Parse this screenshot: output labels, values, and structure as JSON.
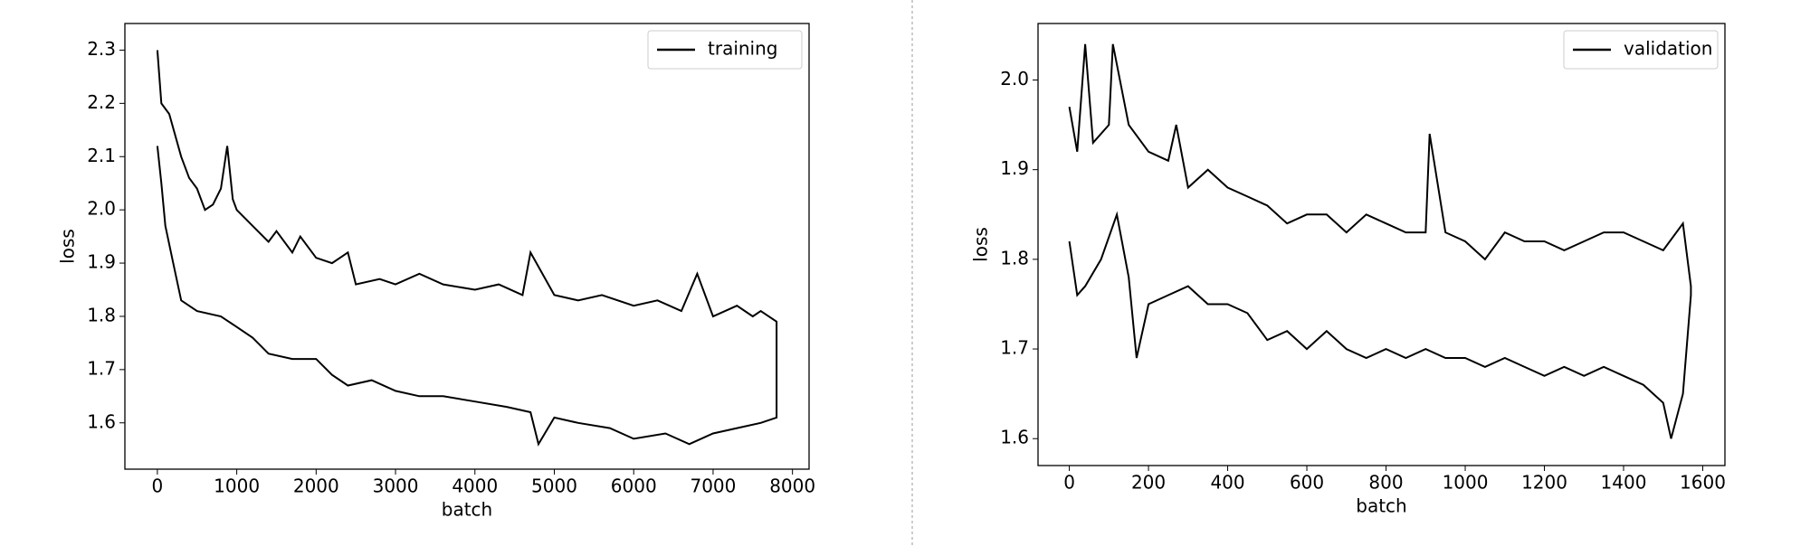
{
  "chart_data": [
    {
      "type": "line",
      "xlabel": "batch",
      "ylabel": "loss",
      "xlim": [
        -409,
        8209
      ],
      "ylim": [
        1.513,
        2.35
      ],
      "xticks": [
        0,
        1000,
        2000,
        3000,
        4000,
        5000,
        6000,
        7000,
        8000
      ],
      "yticks": [
        1.6,
        1.7,
        1.8,
        1.9,
        {
          "value": 2,
          "label": "2.0"
        },
        2.1,
        2.2,
        2.3
      ],
      "legend": "upper right",
      "series": [
        {
          "name": "training",
          "color": "#000000",
          "x": [
            0,
            50,
            150,
            300,
            400,
            500,
            600,
            700,
            800,
            880,
            950,
            1000,
            1200,
            1400,
            1500,
            1700,
            1800,
            2000,
            2200,
            2400,
            2500,
            2800,
            3000,
            3300,
            3600,
            4000,
            4300,
            4600,
            4700,
            5000,
            5300,
            5600,
            6000,
            6300,
            6600,
            6800,
            7000,
            7300,
            7500,
            7600,
            7800,
            7800,
            7600,
            7300,
            7000,
            6700,
            6400,
            6000,
            5700,
            5300,
            5000,
            4800,
            4700,
            4400,
            4000,
            3600,
            3300,
            3000,
            2700,
            2400,
            2200,
            2000,
            1700,
            1400,
            1200,
            1000,
            800,
            500,
            300,
            200,
            100,
            50,
            0
          ],
          "values": [
            2.3,
            2.2,
            2.18,
            2.1,
            2.06,
            2.04,
            2.0,
            2.01,
            2.04,
            2.12,
            2.02,
            2.0,
            1.97,
            1.94,
            1.96,
            1.92,
            1.95,
            1.91,
            1.9,
            1.92,
            1.86,
            1.87,
            1.86,
            1.88,
            1.86,
            1.85,
            1.86,
            1.84,
            1.92,
            1.84,
            1.83,
            1.84,
            1.82,
            1.83,
            1.81,
            1.88,
            1.8,
            1.82,
            1.8,
            1.81,
            1.79,
            1.61,
            1.6,
            1.59,
            1.58,
            1.56,
            1.58,
            1.57,
            1.59,
            1.6,
            1.61,
            1.56,
            1.62,
            1.63,
            1.64,
            1.65,
            1.65,
            1.66,
            1.68,
            1.67,
            1.69,
            1.72,
            1.72,
            1.73,
            1.76,
            1.78,
            1.8,
            1.81,
            1.83,
            1.9,
            1.97,
            2.05,
            2.12
          ]
        }
      ]
    },
    {
      "type": "line",
      "xlabel": "batch",
      "ylabel": "loss",
      "xlim": [
        -79,
        1656
      ],
      "ylim": [
        1.57,
        2.063
      ],
      "xticks": [
        0,
        200,
        400,
        600,
        800,
        1000,
        1200,
        1400,
        1600
      ],
      "yticks": [
        1.6,
        1.7,
        1.8,
        1.9,
        {
          "value": 2,
          "label": "2.0"
        }
      ],
      "legend": "upper right",
      "series": [
        {
          "name": "validation",
          "color": "#000000",
          "x": [
            0,
            20,
            40,
            60,
            100,
            110,
            150,
            200,
            250,
            270,
            300,
            350,
            400,
            450,
            500,
            550,
            600,
            650,
            700,
            750,
            800,
            850,
            900,
            910,
            950,
            1000,
            1050,
            1100,
            1150,
            1200,
            1250,
            1300,
            1350,
            1400,
            1450,
            1500,
            1550,
            1570,
            1570,
            1550,
            1520,
            1500,
            1450,
            1400,
            1350,
            1300,
            1250,
            1200,
            1150,
            1100,
            1050,
            1000,
            950,
            900,
            850,
            800,
            750,
            700,
            650,
            600,
            550,
            500,
            450,
            400,
            350,
            300,
            250,
            200,
            170,
            150,
            120,
            80,
            40,
            20,
            0
          ],
          "values": [
            1.97,
            1.92,
            2.04,
            1.93,
            1.95,
            2.04,
            1.95,
            1.92,
            1.91,
            1.95,
            1.88,
            1.9,
            1.88,
            1.87,
            1.86,
            1.84,
            1.85,
            1.85,
            1.83,
            1.85,
            1.84,
            1.83,
            1.83,
            1.94,
            1.83,
            1.82,
            1.8,
            1.83,
            1.82,
            1.82,
            1.81,
            1.82,
            1.83,
            1.83,
            1.82,
            1.81,
            1.84,
            1.77,
            1.76,
            1.65,
            1.6,
            1.64,
            1.66,
            1.67,
            1.68,
            1.67,
            1.68,
            1.67,
            1.68,
            1.69,
            1.68,
            1.69,
            1.69,
            1.7,
            1.69,
            1.7,
            1.69,
            1.7,
            1.72,
            1.7,
            1.72,
            1.71,
            1.74,
            1.75,
            1.75,
            1.77,
            1.76,
            1.75,
            1.69,
            1.78,
            1.85,
            1.8,
            1.77,
            1.76,
            1.82
          ]
        }
      ]
    }
  ]
}
